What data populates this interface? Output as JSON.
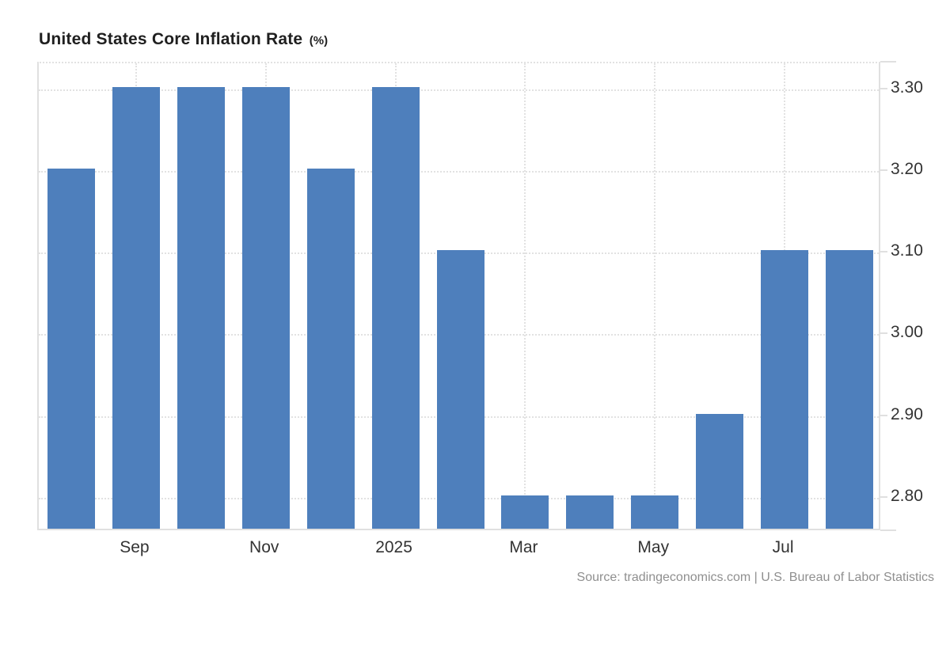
{
  "title": {
    "main": "United States Core Inflation Rate",
    "unit": "(%)"
  },
  "source": "Source: tradingeconomics.com | U.S. Bureau of Labor Statistics",
  "colors": {
    "bar": "#4e7fbc",
    "grid": "#e2e2e2",
    "axis": "#e0e0e0",
    "title": "#1f1f1f",
    "tick_label": "#333333",
    "source_text": "#8f8f8f",
    "background": "#ffffff"
  },
  "chart_data": {
    "type": "bar",
    "title": "United States Core Inflation Rate (%)",
    "values": [
      3.2,
      3.3,
      3.3,
      3.3,
      3.2,
      3.3,
      3.1,
      2.8,
      2.8,
      2.8,
      2.9,
      3.1,
      3.1
    ],
    "x_ticks": [
      {
        "label": "Sep",
        "bar_index": 1
      },
      {
        "label": "Nov",
        "bar_index": 3
      },
      {
        "label": "2025",
        "bar_index": 5
      },
      {
        "label": "Mar",
        "bar_index": 7
      },
      {
        "label": "May",
        "bar_index": 9
      },
      {
        "label": "Jul",
        "bar_index": 11
      }
    ],
    "y_ticks": [
      {
        "label": "3.30",
        "value": 3.3
      },
      {
        "label": "3.20",
        "value": 3.2
      },
      {
        "label": "3.10",
        "value": 3.1
      },
      {
        "label": "3.00",
        "value": 3.0
      },
      {
        "label": "2.90",
        "value": 2.9
      },
      {
        "label": "2.80",
        "value": 2.8
      }
    ],
    "ylim": [
      2.759,
      3.333
    ],
    "xlabel": "",
    "ylabel": "%",
    "grid": "dotted",
    "legend": "none",
    "y_axis_side": "right"
  }
}
